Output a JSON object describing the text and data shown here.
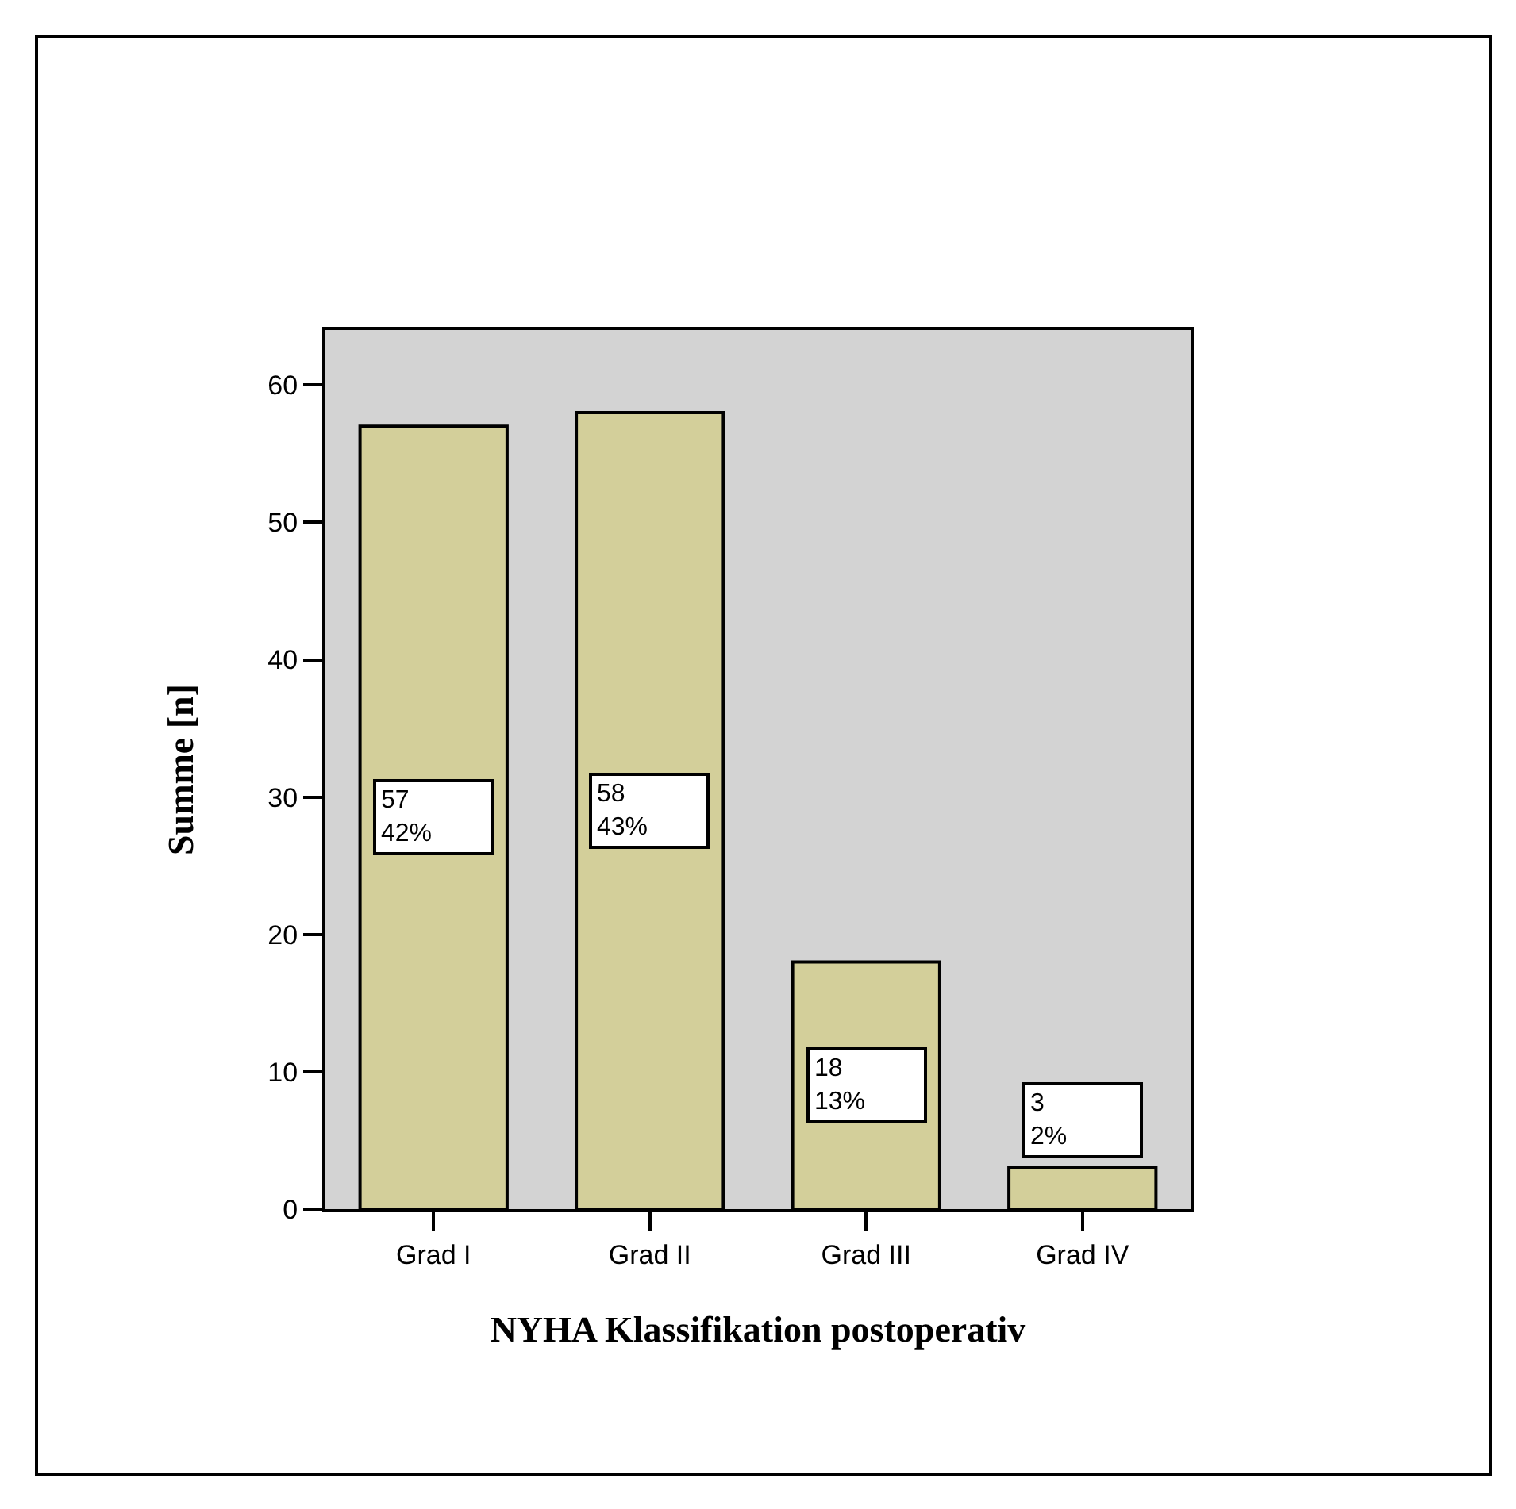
{
  "chart_data": {
    "type": "bar",
    "categories": [
      "Grad I",
      "Grad II",
      "Grad III",
      "Grad IV"
    ],
    "values": [
      57,
      58,
      18,
      3
    ],
    "value_labels": [
      "57\n42%",
      "58\n43%",
      "18\n13%",
      "3\n2%"
    ],
    "color": "#d3cf9a",
    "xlabel": "NYHA Klassifikation postoperativ",
    "ylabel": "Summe [n]",
    "ylim": [
      0,
      64
    ],
    "yticks": [
      0,
      10,
      20,
      30,
      40,
      50,
      60
    ]
  }
}
